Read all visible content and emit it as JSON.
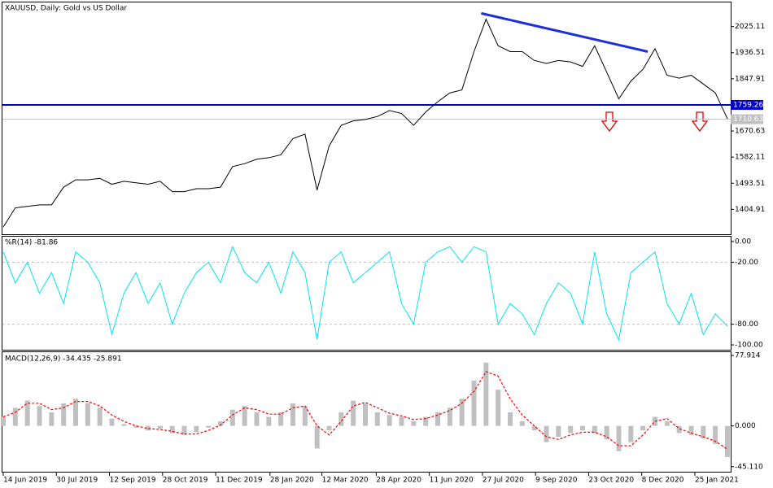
{
  "chart_data": [
    {
      "type": "line",
      "title": "XAUUSD, Daily:  Gold vs US Dollar",
      "xlim": [
        0,
        60
      ],
      "ylim": [
        1320.4,
        2106.9
      ],
      "yticks": [
        1404.91,
        1493.51,
        1582.11,
        1670.63,
        1847.91,
        1936.51,
        2025.11
      ],
      "series": [
        {
          "color": "#000000",
          "values": [
            1345,
            1410,
            1415,
            1420,
            1420,
            1480,
            1505,
            1505,
            1510,
            1490,
            1500,
            1495,
            1490,
            1500,
            1465,
            1465,
            1475,
            1475,
            1480,
            1550,
            1560,
            1575,
            1580,
            1590,
            1645,
            1660,
            1470,
            1620,
            1690,
            1705,
            1710,
            1720,
            1740,
            1730,
            1690,
            1735,
            1770,
            1800,
            1810,
            1940,
            2050,
            1960,
            1940,
            1940,
            1910,
            1900,
            1910,
            1905,
            1890,
            1960,
            1870,
            1780,
            1840,
            1880,
            1950,
            1860,
            1850,
            1860,
            1830,
            1800,
            1712
          ]
        }
      ],
      "hlines": [
        {
          "value": 1759.26,
          "color": "#0000cc"
        },
        {
          "value": 1710.63,
          "color": "#c0c0c0"
        }
      ],
      "trendline": {
        "x": [
          39.6,
          53.4
        ],
        "y": [
          2070,
          1940
        ],
        "color": "#1c2ee0"
      }
    },
    {
      "type": "line",
      "title": "%R(14) -81.86",
      "xlim": [
        0,
        60
      ],
      "ylim": [
        -104.7,
        4.7
      ],
      "yticks": [
        {
          "value": 0,
          "label": "0.00"
        },
        {
          "value": -20,
          "label": "-20.00"
        },
        {
          "value": -80,
          "label": "-80.00"
        },
        {
          "value": -100,
          "label": "-100.00"
        }
      ],
      "levels": [
        -20,
        -80
      ],
      "series": [
        {
          "color": "#00e5ee",
          "values": [
            -10,
            -40,
            -20,
            -50,
            -30,
            -60,
            -10,
            -20,
            -40,
            -90,
            -50,
            -30,
            -60,
            -40,
            -80,
            -50,
            -30,
            -20,
            -40,
            -5,
            -30,
            -40,
            -20,
            -50,
            -10,
            -30,
            -95,
            -20,
            -10,
            -40,
            -30,
            -20,
            -10,
            -60,
            -80,
            -20,
            -10,
            -5,
            -20,
            -5,
            -10,
            -80,
            -60,
            -70,
            -90,
            -60,
            -40,
            -50,
            -80,
            -10,
            -70,
            -95,
            -30,
            -20,
            -10,
            -60,
            -80,
            -50,
            -90,
            -70,
            -81.86
          ]
        }
      ]
    },
    {
      "type": "macd",
      "title": "MACD(12,26,9) -34.435 -25.891",
      "xlim": [
        0,
        60
      ],
      "ylim": [
        -50.7,
        81.5
      ],
      "yticks": [
        77.914,
        {
          "value": 0,
          "label": "0.000"
        },
        {
          "value": -45.11,
          "label": "-45.110"
        }
      ],
      "xticks": [
        {
          "value": 0,
          "label": "14 Jun 2019"
        },
        {
          "value": 4.4,
          "label": "30 Jul 2019"
        },
        {
          "value": 8.8,
          "label": "12 Sep 2019"
        },
        {
          "value": 13.2,
          "label": "28 Oct 2019"
        },
        {
          "value": 17.6,
          "label": "11 Dec 2019"
        },
        {
          "value": 22.1,
          "label": "28 Jan 2020"
        },
        {
          "value": 26.4,
          "label": "12 Mar 2020"
        },
        {
          "value": 30.9,
          "label": "28 Apr 2020"
        },
        {
          "value": 35.3,
          "label": "11 Jun 2020"
        },
        {
          "value": 39.7,
          "label": "27 Jul 2020"
        },
        {
          "value": 44.1,
          "label": "9 Sep 2020"
        },
        {
          "value": 48.5,
          "label": "23 Oct 2020"
        },
        {
          "value": 52.9,
          "label": "8 Dec 2020"
        },
        {
          "value": 57.3,
          "label": "25 Jan 2021"
        }
      ],
      "series": [
        {
          "style": "bar",
          "color": "#c0c0c0",
          "values": [
            10,
            20,
            28,
            22,
            15,
            25,
            30,
            25,
            20,
            8,
            2,
            -2,
            -5,
            -3,
            -8,
            -10,
            -7,
            -2,
            5,
            18,
            22,
            15,
            10,
            15,
            25,
            22,
            -25,
            -5,
            15,
            28,
            25,
            15,
            12,
            10,
            5,
            10,
            15,
            20,
            30,
            50,
            70,
            40,
            15,
            5,
            -5,
            -18,
            -12,
            -8,
            -5,
            -8,
            -15,
            -28,
            -18,
            -5,
            10,
            5,
            -8,
            -10,
            -14,
            -20,
            -34.435
          ]
        },
        {
          "style": "dashed",
          "color": "#ff0000",
          "values": [
            10,
            15,
            25,
            25,
            18,
            20,
            27,
            27,
            22,
            12,
            5,
            0,
            -3,
            -4,
            -6,
            -9,
            -9,
            -5,
            1,
            12,
            20,
            18,
            13,
            13,
            20,
            22,
            0,
            -10,
            5,
            22,
            26,
            20,
            14,
            11,
            7,
            8,
            12,
            17,
            25,
            38,
            60,
            55,
            30,
            12,
            0,
            -12,
            -15,
            -10,
            -7,
            -7,
            -12,
            -22,
            -22,
            -10,
            5,
            8,
            -3,
            -8,
            -12,
            -17,
            -25.891
          ]
        }
      ]
    }
  ]
}
